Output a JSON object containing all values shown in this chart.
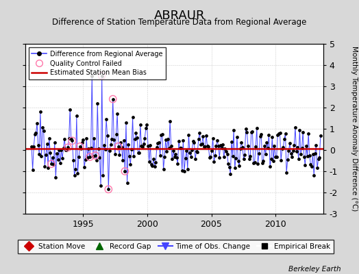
{
  "title": "ABRAUR",
  "subtitle": "Difference of Station Temperature Data from Regional Average",
  "ylabel_right": "Monthly Temperature Anomaly Difference (°C)",
  "credit": "Berkeley Earth",
  "ylim": [
    -3,
    5
  ],
  "yticks": [
    -3,
    -2,
    -1,
    0,
    1,
    2,
    3,
    4,
    5
  ],
  "x_start_year": 1990.5,
  "x_end_year": 2013.7,
  "xticks": [
    1995,
    2000,
    2005,
    2010
  ],
  "bias_level": 0.05,
  "background_color": "#d8d8d8",
  "plot_bg_color": "#ffffff",
  "line_color": "#4444ff",
  "dot_color": "#000000",
  "bias_color": "#cc0000",
  "grid_color": "#cccccc",
  "seed": 17,
  "n_points": 264
}
